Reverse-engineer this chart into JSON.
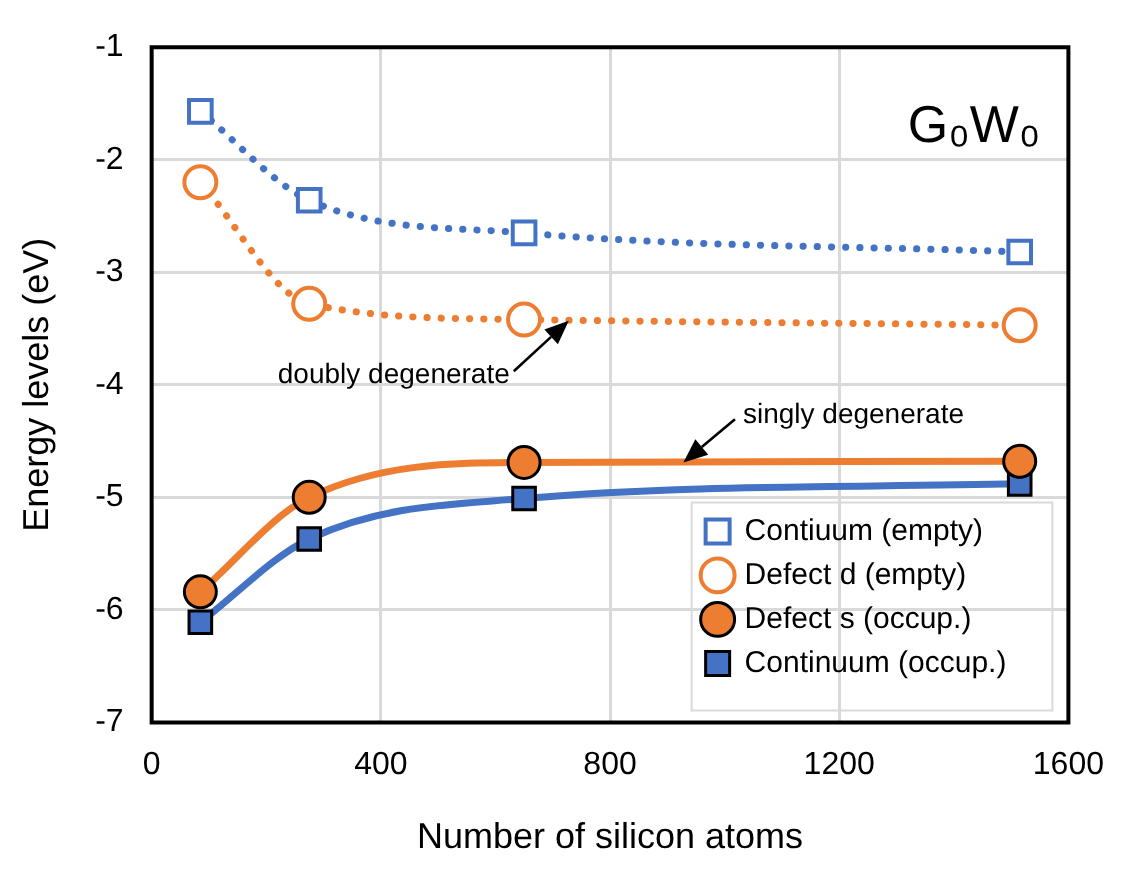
{
  "chart_data": {
    "type": "line",
    "xlabel": "Number of silicon atoms",
    "ylabel": "Energy levels (eV)",
    "x": [
      85,
      275,
      650,
      1515
    ],
    "series": [
      {
        "name": "Contiuum (empty)",
        "color": "#4472c4",
        "values": [
          -1.57,
          -2.36,
          -2.65,
          -2.82
        ],
        "marker": "square",
        "line_style": "dotted"
      },
      {
        "name": "Defect d (empty)",
        "color": "#ed7d31",
        "values": [
          -2.2,
          -3.28,
          -3.42,
          -3.47
        ],
        "marker": "circle",
        "line_style": "dotted"
      },
      {
        "name": "Defect s (occup.)",
        "color": "#ed7d31",
        "values": [
          -5.84,
          -5.0,
          -4.69,
          -4.68
        ],
        "marker": "circle",
        "line_style": "solid"
      },
      {
        "name": "Continuum (occup.)",
        "color": "#4472c4",
        "values": [
          -6.11,
          -5.37,
          -5.01,
          -4.88
        ],
        "marker": "square",
        "line_style": "solid"
      }
    ],
    "xlim": [
      0,
      1600
    ],
    "xticks": [
      0,
      400,
      800,
      1200,
      1600
    ],
    "ylim": [
      -7,
      -1
    ],
    "yticks": [
      -7,
      -6,
      -5,
      -4,
      -3,
      -2,
      -1
    ],
    "grid": true,
    "legend": "bottom right",
    "annotations": [
      "G₀W₀",
      {
        "text": "doubly degenerate",
        "x": 728,
        "y": -3.43
      },
      {
        "text": "singly degenerate",
        "x": 928,
        "y": -4.69
      }
    ]
  }
}
